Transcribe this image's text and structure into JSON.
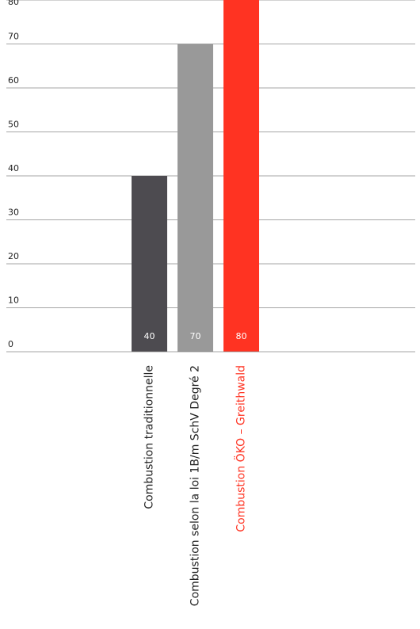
{
  "chart_data": {
    "type": "bar",
    "categories": [
      "Combustion traditionnelle",
      "Combustion selon la loi 1B/m SchV Degré 2",
      "Combustion ÖKO – Greithwald"
    ],
    "values": [
      40,
      70,
      80
    ],
    "value_labels": [
      "40",
      "70",
      "80"
    ],
    "yticks": [
      0,
      10,
      20,
      30,
      40,
      50,
      60,
      70,
      80
    ],
    "ytick_labels": [
      "0",
      "10",
      "20",
      "30",
      "40",
      "50",
      "60",
      "70",
      "80"
    ],
    "ylim": [
      0,
      80
    ],
    "grid": true,
    "legend": "none",
    "colors": {
      "bars": [
        "#4d4b50",
        "#999999",
        "#ff3322"
      ],
      "category_labels": [
        "#222222",
        "#222222",
        "#ff3322"
      ],
      "gridline": "#888888",
      "tick_label": "#222222",
      "value_label": "#ffffff"
    }
  }
}
